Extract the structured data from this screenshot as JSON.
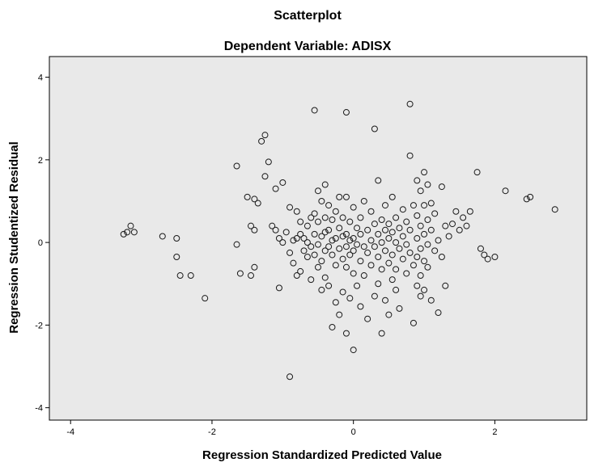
{
  "chart_data": {
    "type": "scatter",
    "title": "Scatterplot",
    "subtitle": "Dependent Variable: ADISX",
    "xlabel": "Regression Standardized Predicted Value",
    "ylabel": "Regression Studentized Residual",
    "xlim": [
      -4.3,
      3.3
    ],
    "ylim": [
      -4.3,
      4.5
    ],
    "xticks": [
      -4,
      -2,
      0,
      2
    ],
    "yticks": [
      -4,
      -2,
      0,
      2,
      4
    ],
    "grid": false,
    "colors": {
      "plot_background": "#e9e9e9",
      "marker": "#1a1a1a"
    },
    "points": [
      [
        -3.25,
        0.2
      ],
      [
        -3.2,
        0.25
      ],
      [
        -3.15,
        0.4
      ],
      [
        -3.1,
        0.25
      ],
      [
        -2.7,
        0.15
      ],
      [
        -2.5,
        0.1
      ],
      [
        -2.5,
        -0.35
      ],
      [
        -2.45,
        -0.8
      ],
      [
        -2.3,
        -0.8
      ],
      [
        -2.1,
        -1.35
      ],
      [
        -1.65,
        1.85
      ],
      [
        -1.65,
        -0.05
      ],
      [
        -1.6,
        -0.75
      ],
      [
        -1.5,
        1.1
      ],
      [
        -1.45,
        0.4
      ],
      [
        -1.45,
        -0.8
      ],
      [
        -1.4,
        1.05
      ],
      [
        -1.4,
        0.3
      ],
      [
        -1.4,
        -0.6
      ],
      [
        -1.35,
        0.95
      ],
      [
        -1.3,
        2.45
      ],
      [
        -1.25,
        2.6
      ],
      [
        -1.25,
        1.6
      ],
      [
        -1.2,
        1.95
      ],
      [
        -1.15,
        0.4
      ],
      [
        -1.1,
        1.3
      ],
      [
        -1.1,
        0.3
      ],
      [
        -1.05,
        0.1
      ],
      [
        -1.05,
        -1.1
      ],
      [
        -1.0,
        1.45
      ],
      [
        -1.0,
        0.0
      ],
      [
        -0.95,
        0.25
      ],
      [
        -0.9,
        0.85
      ],
      [
        -0.9,
        -0.25
      ],
      [
        -0.9,
        -3.25
      ],
      [
        -0.85,
        0.05
      ],
      [
        -0.85,
        -0.5
      ],
      [
        -0.8,
        0.75
      ],
      [
        -0.8,
        0.1
      ],
      [
        -0.8,
        -0.8
      ],
      [
        -0.75,
        0.5
      ],
      [
        -0.75,
        0.2
      ],
      [
        -0.75,
        -0.7
      ],
      [
        -0.7,
        0.1
      ],
      [
        -0.7,
        -0.2
      ],
      [
        -0.65,
        0.4
      ],
      [
        -0.65,
        0.0
      ],
      [
        -0.65,
        -0.35
      ],
      [
        -0.6,
        0.6
      ],
      [
        -0.6,
        -0.1
      ],
      [
        -0.6,
        -0.9
      ],
      [
        -0.55,
        3.2
      ],
      [
        -0.55,
        0.7
      ],
      [
        -0.55,
        0.2
      ],
      [
        -0.55,
        -0.3
      ],
      [
        -0.5,
        1.25
      ],
      [
        -0.5,
        0.5
      ],
      [
        -0.5,
        -0.05
      ],
      [
        -0.5,
        -0.6
      ],
      [
        -0.45,
        1.0
      ],
      [
        -0.45,
        0.15
      ],
      [
        -0.45,
        -0.45
      ],
      [
        -0.45,
        -1.15
      ],
      [
        -0.4,
        1.4
      ],
      [
        -0.4,
        0.6
      ],
      [
        -0.4,
        0.25
      ],
      [
        -0.4,
        -0.2
      ],
      [
        -0.4,
        -0.85
      ],
      [
        -0.35,
        0.9
      ],
      [
        -0.35,
        0.3
      ],
      [
        -0.35,
        -0.1
      ],
      [
        -0.35,
        -1.05
      ],
      [
        -0.3,
        0.55
      ],
      [
        -0.3,
        0.05
      ],
      [
        -0.3,
        -0.3
      ],
      [
        -0.3,
        -2.05
      ],
      [
        -0.25,
        0.75
      ],
      [
        -0.25,
        0.1
      ],
      [
        -0.25,
        -0.55
      ],
      [
        -0.25,
        -1.45
      ],
      [
        -0.2,
        1.1
      ],
      [
        -0.2,
        0.35
      ],
      [
        -0.2,
        -0.15
      ],
      [
        -0.2,
        -1.75
      ],
      [
        -0.15,
        0.6
      ],
      [
        -0.15,
        0.15
      ],
      [
        -0.15,
        -0.4
      ],
      [
        -0.15,
        -1.2
      ],
      [
        -0.1,
        3.15
      ],
      [
        -0.1,
        1.1
      ],
      [
        -0.1,
        0.2
      ],
      [
        -0.1,
        -0.1
      ],
      [
        -0.1,
        -0.6
      ],
      [
        -0.1,
        -2.2
      ],
      [
        -0.05,
        0.5
      ],
      [
        -0.05,
        0.05
      ],
      [
        -0.05,
        -0.3
      ],
      [
        -0.05,
        -1.35
      ],
      [
        0.0,
        0.85
      ],
      [
        0.0,
        0.1
      ],
      [
        0.0,
        -0.2
      ],
      [
        0.0,
        -0.75
      ],
      [
        0.0,
        -2.6
      ],
      [
        0.05,
        0.35
      ],
      [
        0.05,
        -0.05
      ],
      [
        0.05,
        -1.05
      ],
      [
        0.1,
        0.6
      ],
      [
        0.1,
        0.2
      ],
      [
        0.1,
        -0.45
      ],
      [
        0.1,
        -1.55
      ],
      [
        0.15,
        1.0
      ],
      [
        0.15,
        -0.1
      ],
      [
        0.15,
        -0.8
      ],
      [
        0.2,
        0.3
      ],
      [
        0.2,
        -0.25
      ],
      [
        0.2,
        -1.85
      ],
      [
        0.25,
        0.75
      ],
      [
        0.25,
        0.05
      ],
      [
        0.25,
        -0.55
      ],
      [
        0.3,
        2.75
      ],
      [
        0.3,
        0.45
      ],
      [
        0.3,
        -0.1
      ],
      [
        0.3,
        -1.3
      ],
      [
        0.35,
        1.5
      ],
      [
        0.35,
        0.2
      ],
      [
        0.35,
        -0.35
      ],
      [
        0.35,
        -1.0
      ],
      [
        0.4,
        0.55
      ],
      [
        0.4,
        0.0
      ],
      [
        0.4,
        -0.65
      ],
      [
        0.4,
        -2.2
      ],
      [
        0.45,
        0.9
      ],
      [
        0.45,
        0.3
      ],
      [
        0.45,
        -0.2
      ],
      [
        0.45,
        -1.4
      ],
      [
        0.5,
        0.45
      ],
      [
        0.5,
        0.1
      ],
      [
        0.5,
        -0.5
      ],
      [
        0.5,
        -1.75
      ],
      [
        0.55,
        1.1
      ],
      [
        0.55,
        0.25
      ],
      [
        0.55,
        -0.3
      ],
      [
        0.55,
        -0.9
      ],
      [
        0.6,
        0.6
      ],
      [
        0.6,
        0.0
      ],
      [
        0.6,
        -0.65
      ],
      [
        0.6,
        -1.15
      ],
      [
        0.65,
        0.35
      ],
      [
        0.65,
        -0.15
      ],
      [
        0.65,
        -1.6
      ],
      [
        0.7,
        0.8
      ],
      [
        0.7,
        0.15
      ],
      [
        0.7,
        -0.4
      ],
      [
        0.75,
        0.5
      ],
      [
        0.75,
        -0.05
      ],
      [
        0.75,
        -0.75
      ],
      [
        0.8,
        3.35
      ],
      [
        0.8,
        2.1
      ],
      [
        0.8,
        0.3
      ],
      [
        0.8,
        -0.25
      ],
      [
        0.85,
        0.9
      ],
      [
        0.85,
        -0.55
      ],
      [
        0.85,
        -1.95
      ],
      [
        0.9,
        1.5
      ],
      [
        0.9,
        0.65
      ],
      [
        0.9,
        0.1
      ],
      [
        0.9,
        -0.35
      ],
      [
        0.9,
        -1.05
      ],
      [
        0.95,
        1.25
      ],
      [
        0.95,
        0.4
      ],
      [
        0.95,
        -0.15
      ],
      [
        0.95,
        -0.8
      ],
      [
        0.95,
        -1.3
      ],
      [
        1.0,
        1.7
      ],
      [
        1.0,
        0.9
      ],
      [
        1.0,
        0.2
      ],
      [
        1.0,
        -0.45
      ],
      [
        1.0,
        -1.15
      ],
      [
        1.05,
        1.4
      ],
      [
        1.05,
        0.55
      ],
      [
        1.05,
        -0.05
      ],
      [
        1.05,
        -0.6
      ],
      [
        1.1,
        0.95
      ],
      [
        1.1,
        0.3
      ],
      [
        1.1,
        -1.4
      ],
      [
        1.15,
        0.7
      ],
      [
        1.15,
        -0.2
      ],
      [
        1.2,
        0.05
      ],
      [
        1.2,
        -1.7
      ],
      [
        1.25,
        1.35
      ],
      [
        1.25,
        -0.35
      ],
      [
        1.3,
        0.4
      ],
      [
        1.3,
        -1.05
      ],
      [
        1.35,
        0.15
      ],
      [
        1.4,
        0.45
      ],
      [
        1.45,
        0.75
      ],
      [
        1.5,
        0.3
      ],
      [
        1.55,
        0.6
      ],
      [
        1.6,
        0.4
      ],
      [
        1.65,
        0.75
      ],
      [
        1.75,
        1.7
      ],
      [
        1.8,
        -0.15
      ],
      [
        1.85,
        -0.3
      ],
      [
        1.9,
        -0.4
      ],
      [
        2.0,
        -0.35
      ],
      [
        2.15,
        1.25
      ],
      [
        2.45,
        1.05
      ],
      [
        2.5,
        1.1
      ],
      [
        2.85,
        0.8
      ]
    ]
  }
}
